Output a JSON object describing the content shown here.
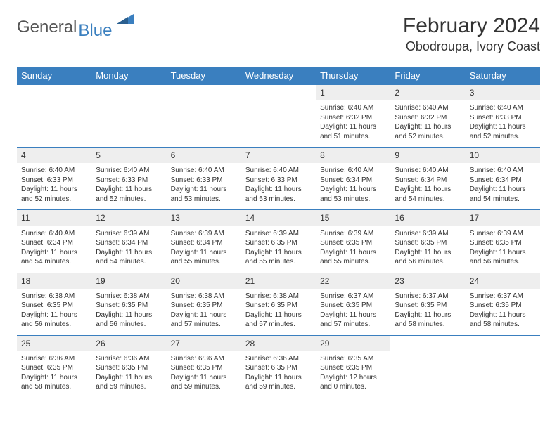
{
  "logo": {
    "word1": "General",
    "word2": "Blue"
  },
  "title": "February 2024",
  "location": "Obodroupa, Ivory Coast",
  "colors": {
    "header_bg": "#3a7fbf",
    "header_text": "#ffffff",
    "daynum_bg": "#eeeeee",
    "border": "#3a7fbf",
    "logo_gray": "#555555",
    "logo_blue": "#3a7fbf"
  },
  "weekdays": [
    "Sunday",
    "Monday",
    "Tuesday",
    "Wednesday",
    "Thursday",
    "Friday",
    "Saturday"
  ],
  "weeks": [
    [
      null,
      null,
      null,
      null,
      {
        "d": "1",
        "sr": "6:40 AM",
        "ss": "6:32 PM",
        "dl": "11 hours and 51 minutes."
      },
      {
        "d": "2",
        "sr": "6:40 AM",
        "ss": "6:32 PM",
        "dl": "11 hours and 52 minutes."
      },
      {
        "d": "3",
        "sr": "6:40 AM",
        "ss": "6:33 PM",
        "dl": "11 hours and 52 minutes."
      }
    ],
    [
      {
        "d": "4",
        "sr": "6:40 AM",
        "ss": "6:33 PM",
        "dl": "11 hours and 52 minutes."
      },
      {
        "d": "5",
        "sr": "6:40 AM",
        "ss": "6:33 PM",
        "dl": "11 hours and 52 minutes."
      },
      {
        "d": "6",
        "sr": "6:40 AM",
        "ss": "6:33 PM",
        "dl": "11 hours and 53 minutes."
      },
      {
        "d": "7",
        "sr": "6:40 AM",
        "ss": "6:33 PM",
        "dl": "11 hours and 53 minutes."
      },
      {
        "d": "8",
        "sr": "6:40 AM",
        "ss": "6:34 PM",
        "dl": "11 hours and 53 minutes."
      },
      {
        "d": "9",
        "sr": "6:40 AM",
        "ss": "6:34 PM",
        "dl": "11 hours and 54 minutes."
      },
      {
        "d": "10",
        "sr": "6:40 AM",
        "ss": "6:34 PM",
        "dl": "11 hours and 54 minutes."
      }
    ],
    [
      {
        "d": "11",
        "sr": "6:40 AM",
        "ss": "6:34 PM",
        "dl": "11 hours and 54 minutes."
      },
      {
        "d": "12",
        "sr": "6:39 AM",
        "ss": "6:34 PM",
        "dl": "11 hours and 54 minutes."
      },
      {
        "d": "13",
        "sr": "6:39 AM",
        "ss": "6:34 PM",
        "dl": "11 hours and 55 minutes."
      },
      {
        "d": "14",
        "sr": "6:39 AM",
        "ss": "6:35 PM",
        "dl": "11 hours and 55 minutes."
      },
      {
        "d": "15",
        "sr": "6:39 AM",
        "ss": "6:35 PM",
        "dl": "11 hours and 55 minutes."
      },
      {
        "d": "16",
        "sr": "6:39 AM",
        "ss": "6:35 PM",
        "dl": "11 hours and 56 minutes."
      },
      {
        "d": "17",
        "sr": "6:39 AM",
        "ss": "6:35 PM",
        "dl": "11 hours and 56 minutes."
      }
    ],
    [
      {
        "d": "18",
        "sr": "6:38 AM",
        "ss": "6:35 PM",
        "dl": "11 hours and 56 minutes."
      },
      {
        "d": "19",
        "sr": "6:38 AM",
        "ss": "6:35 PM",
        "dl": "11 hours and 56 minutes."
      },
      {
        "d": "20",
        "sr": "6:38 AM",
        "ss": "6:35 PM",
        "dl": "11 hours and 57 minutes."
      },
      {
        "d": "21",
        "sr": "6:38 AM",
        "ss": "6:35 PM",
        "dl": "11 hours and 57 minutes."
      },
      {
        "d": "22",
        "sr": "6:37 AM",
        "ss": "6:35 PM",
        "dl": "11 hours and 57 minutes."
      },
      {
        "d": "23",
        "sr": "6:37 AM",
        "ss": "6:35 PM",
        "dl": "11 hours and 58 minutes."
      },
      {
        "d": "24",
        "sr": "6:37 AM",
        "ss": "6:35 PM",
        "dl": "11 hours and 58 minutes."
      }
    ],
    [
      {
        "d": "25",
        "sr": "6:36 AM",
        "ss": "6:35 PM",
        "dl": "11 hours and 58 minutes."
      },
      {
        "d": "26",
        "sr": "6:36 AM",
        "ss": "6:35 PM",
        "dl": "11 hours and 59 minutes."
      },
      {
        "d": "27",
        "sr": "6:36 AM",
        "ss": "6:35 PM",
        "dl": "11 hours and 59 minutes."
      },
      {
        "d": "28",
        "sr": "6:36 AM",
        "ss": "6:35 PM",
        "dl": "11 hours and 59 minutes."
      },
      {
        "d": "29",
        "sr": "6:35 AM",
        "ss": "6:35 PM",
        "dl": "12 hours and 0 minutes."
      },
      null,
      null
    ]
  ],
  "labels": {
    "sunrise": "Sunrise:",
    "sunset": "Sunset:",
    "daylight": "Daylight:"
  }
}
